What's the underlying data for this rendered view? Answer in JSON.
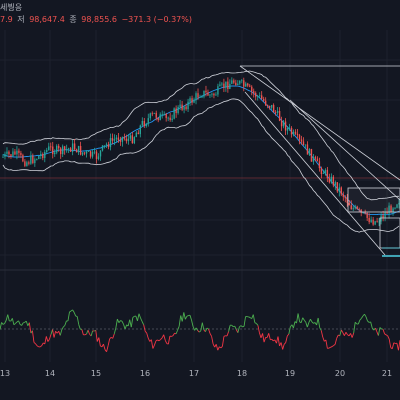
{
  "legend": {
    "title_suffix": "세붱응",
    "low_value": "7.9",
    "close_label": "저",
    "close_value": "98,647.4",
    "end_label": "종",
    "end_value": "98,855.6",
    "change": "−371.3 (−0.37%)"
  },
  "x_axis": {
    "labels": [
      "13",
      "14",
      "15",
      "16",
      "17",
      "18",
      "19",
      "20",
      "21"
    ]
  },
  "colors": {
    "background": "#131722",
    "up": "#26a69a",
    "down": "#ef5350",
    "bollinger": "#d1d4dc",
    "basis": "#2196f3",
    "indicator_up": "#4caf50",
    "indicator_down": "#f23645",
    "channel": "#d1d4dc",
    "highlight": "#4dd0e1"
  },
  "chart_data": {
    "type": "candlestick",
    "x_ticks": [
      "13",
      "14",
      "15",
      "16",
      "17",
      "18",
      "19",
      "20",
      "21"
    ],
    "price_trend": [
      0.5,
      0.52,
      0.47,
      0.5,
      0.55,
      0.53,
      0.56,
      0.52,
      0.5,
      0.58,
      0.62,
      0.6,
      0.7,
      0.75,
      0.72,
      0.78,
      0.82,
      0.88,
      0.86,
      0.92,
      0.95,
      0.9,
      0.85,
      0.8,
      0.7,
      0.62,
      0.55,
      0.45,
      0.38,
      0.3,
      0.2,
      0.15,
      0.12,
      0.18,
      0.25
    ]
  }
}
